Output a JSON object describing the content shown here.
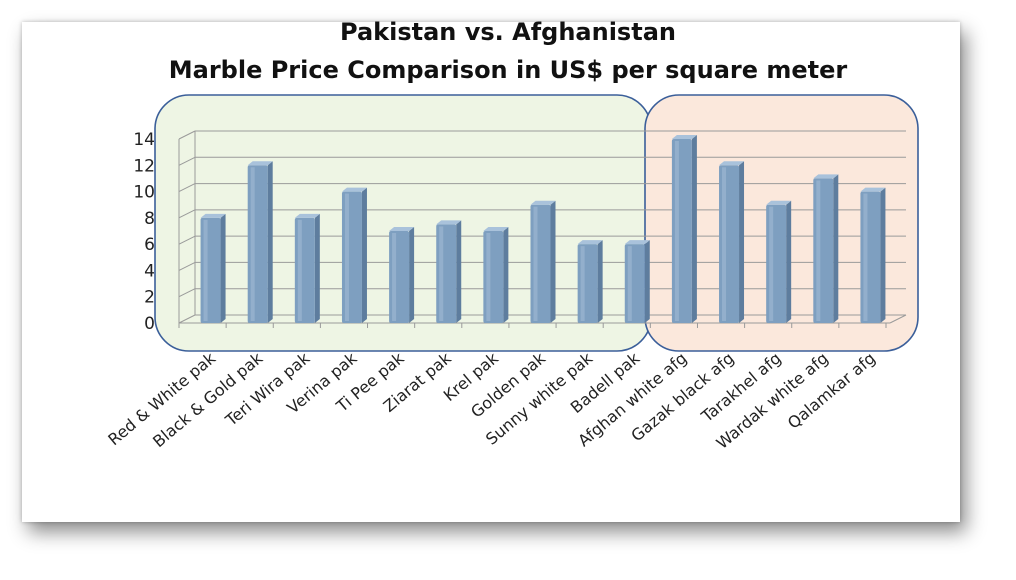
{
  "chart_data": {
    "type": "bar",
    "title": [
      "Pakistan vs. Afghanistan",
      "Marble Price Comparison in US$ per square meter"
    ],
    "xlabel": "",
    "ylabel": "",
    "ylim": [
      0,
      14
    ],
    "yticks": [
      0,
      2,
      4,
      6,
      8,
      10,
      12,
      14
    ],
    "grid": true,
    "legend": "none",
    "categories": [
      "Red & White pak",
      "Black & Gold pak",
      "Teri Wira pak",
      "Verina pak",
      "Ti Pee pak",
      "Ziarat pak",
      "Krel pak",
      "Golden pak",
      "Sunny white pak",
      "Badell pak",
      "Afghan white afg",
      "Gazak black afg",
      "Tarakhel afg",
      "Wardak white afg",
      "Qalamkar afg"
    ],
    "values": [
      8,
      12,
      8,
      10,
      7,
      7.5,
      7,
      9,
      6,
      6,
      14,
      12,
      9,
      11,
      10
    ],
    "groups": [
      {
        "start": 0,
        "end": 9,
        "fill": "#eef5e4"
      },
      {
        "start": 10,
        "end": 14,
        "fill": "#fbe8dc"
      }
    ],
    "colors": {
      "bar_front": "#7e9fc0",
      "bar_side": "#5e7d9e",
      "bar_top": "#a9c2db",
      "group_border": "#3b5f9a",
      "grid": "#9a9a9a"
    }
  }
}
